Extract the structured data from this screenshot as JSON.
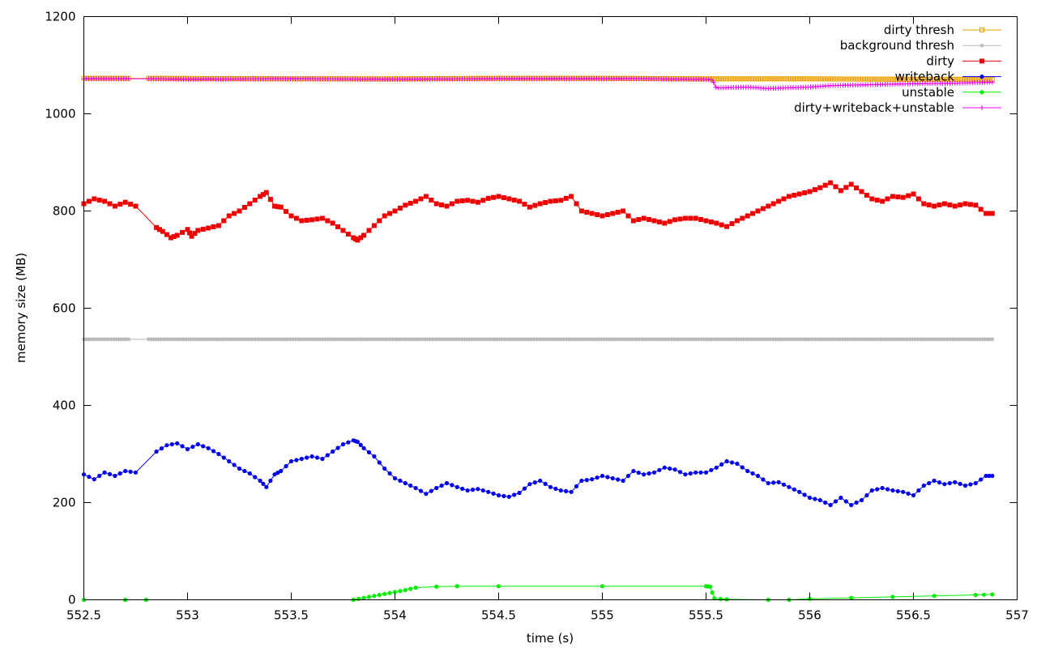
{
  "chart_data": {
    "type": "line",
    "title": "",
    "xlabel": "time (s)",
    "ylabel": "memory size (MB)",
    "xlim": [
      552.5,
      557
    ],
    "ylim": [
      0,
      1200
    ],
    "x_ticks": [
      "552.5",
      "553",
      "553.5",
      "554",
      "554.5",
      "555",
      "555.5",
      "556",
      "556.5",
      "557"
    ],
    "y_ticks": [
      "0",
      "200",
      "400",
      "600",
      "800",
      "1000",
      "1200"
    ],
    "x_tick_values": [
      552.5,
      553,
      553.5,
      554,
      554.5,
      555,
      555.5,
      556,
      556.5,
      557
    ],
    "y_tick_values": [
      0,
      200,
      400,
      600,
      800,
      1000,
      1200
    ],
    "grid": false,
    "legend_position": "top-right",
    "series": [
      {
        "name": "dirty thresh",
        "color": "#f0a000",
        "marker": "square-open",
        "points": [
          [
            552.5,
            1073
          ],
          [
            552.8,
            1073
          ],
          [
            553.5,
            1072
          ],
          [
            554.0,
            1072
          ],
          [
            554.5,
            1073
          ],
          [
            555.0,
            1073
          ],
          [
            555.5,
            1072
          ],
          [
            556.0,
            1072
          ],
          [
            556.5,
            1071
          ],
          [
            556.88,
            1071
          ]
        ]
      },
      {
        "name": "background thresh",
        "color": "#b8b8b8",
        "marker": "asterisk",
        "points": [
          [
            552.5,
            536
          ],
          [
            556.88,
            536
          ]
        ]
      },
      {
        "name": "dirty",
        "color": "#ee0000",
        "marker": "square-filled",
        "points": [
          [
            552.5,
            815
          ],
          [
            552.55,
            825
          ],
          [
            552.6,
            820
          ],
          [
            552.65,
            810
          ],
          [
            552.7,
            818
          ],
          [
            552.75,
            810
          ],
          [
            552.85,
            766
          ],
          [
            552.88,
            758
          ],
          [
            552.92,
            745
          ],
          [
            552.95,
            750
          ],
          [
            553.0,
            762
          ],
          [
            553.02,
            748
          ],
          [
            553.05,
            760
          ],
          [
            553.1,
            765
          ],
          [
            553.15,
            770
          ],
          [
            553.2,
            790
          ],
          [
            553.25,
            800
          ],
          [
            553.3,
            815
          ],
          [
            553.35,
            830
          ],
          [
            553.38,
            838
          ],
          [
            553.42,
            810
          ],
          [
            553.45,
            808
          ],
          [
            553.5,
            790
          ],
          [
            553.55,
            780
          ],
          [
            553.6,
            782
          ],
          [
            553.65,
            785
          ],
          [
            553.7,
            775
          ],
          [
            553.75,
            760
          ],
          [
            553.8,
            745
          ],
          [
            553.82,
            740
          ],
          [
            553.85,
            750
          ],
          [
            553.9,
            770
          ],
          [
            553.95,
            790
          ],
          [
            554.0,
            800
          ],
          [
            554.05,
            812
          ],
          [
            554.1,
            820
          ],
          [
            554.15,
            830
          ],
          [
            554.2,
            815
          ],
          [
            554.25,
            810
          ],
          [
            554.3,
            820
          ],
          [
            554.35,
            822
          ],
          [
            554.4,
            818
          ],
          [
            554.45,
            826
          ],
          [
            554.5,
            830
          ],
          [
            554.55,
            825
          ],
          [
            554.6,
            820
          ],
          [
            554.65,
            808
          ],
          [
            554.7,
            815
          ],
          [
            554.75,
            820
          ],
          [
            554.8,
            822
          ],
          [
            554.85,
            830
          ],
          [
            554.9,
            800
          ],
          [
            554.95,
            795
          ],
          [
            555.0,
            790
          ],
          [
            555.05,
            795
          ],
          [
            555.1,
            800
          ],
          [
            555.15,
            780
          ],
          [
            555.2,
            785
          ],
          [
            555.25,
            780
          ],
          [
            555.3,
            775
          ],
          [
            555.35,
            782
          ],
          [
            555.4,
            785
          ],
          [
            555.45,
            785
          ],
          [
            555.5,
            780
          ],
          [
            555.55,
            775
          ],
          [
            555.6,
            768
          ],
          [
            555.65,
            780
          ],
          [
            555.7,
            790
          ],
          [
            555.75,
            800
          ],
          [
            555.8,
            810
          ],
          [
            555.85,
            820
          ],
          [
            555.9,
            830
          ],
          [
            555.95,
            835
          ],
          [
            556.0,
            840
          ],
          [
            556.05,
            848
          ],
          [
            556.1,
            858
          ],
          [
            556.15,
            842
          ],
          [
            556.2,
            855
          ],
          [
            556.25,
            840
          ],
          [
            556.3,
            825
          ],
          [
            556.35,
            820
          ],
          [
            556.4,
            830
          ],
          [
            556.45,
            828
          ],
          [
            556.5,
            835
          ],
          [
            556.55,
            815
          ],
          [
            556.6,
            810
          ],
          [
            556.65,
            815
          ],
          [
            556.7,
            810
          ],
          [
            556.75,
            815
          ],
          [
            556.8,
            812
          ],
          [
            556.85,
            795
          ],
          [
            556.88,
            795
          ]
        ]
      },
      {
        "name": "writeback",
        "color": "#0000ee",
        "marker": "circle-filled",
        "points": [
          [
            552.5,
            258
          ],
          [
            552.55,
            248
          ],
          [
            552.6,
            262
          ],
          [
            552.65,
            255
          ],
          [
            552.7,
            265
          ],
          [
            552.75,
            262
          ],
          [
            552.85,
            305
          ],
          [
            552.9,
            318
          ],
          [
            552.95,
            322
          ],
          [
            553.0,
            310
          ],
          [
            553.05,
            320
          ],
          [
            553.1,
            312
          ],
          [
            553.15,
            300
          ],
          [
            553.2,
            285
          ],
          [
            553.25,
            270
          ],
          [
            553.3,
            260
          ],
          [
            553.35,
            245
          ],
          [
            553.38,
            232
          ],
          [
            553.42,
            258
          ],
          [
            553.45,
            265
          ],
          [
            553.5,
            285
          ],
          [
            553.55,
            290
          ],
          [
            553.6,
            295
          ],
          [
            553.65,
            290
          ],
          [
            553.7,
            305
          ],
          [
            553.75,
            320
          ],
          [
            553.8,
            328
          ],
          [
            553.82,
            325
          ],
          [
            553.85,
            312
          ],
          [
            553.9,
            295
          ],
          [
            553.95,
            270
          ],
          [
            554.0,
            250
          ],
          [
            554.05,
            240
          ],
          [
            554.1,
            230
          ],
          [
            554.15,
            218
          ],
          [
            554.2,
            230
          ],
          [
            554.25,
            240
          ],
          [
            554.3,
            232
          ],
          [
            554.35,
            225
          ],
          [
            554.4,
            228
          ],
          [
            554.45,
            222
          ],
          [
            554.5,
            215
          ],
          [
            554.55,
            212
          ],
          [
            554.6,
            220
          ],
          [
            554.65,
            238
          ],
          [
            554.7,
            245
          ],
          [
            554.75,
            232
          ],
          [
            554.8,
            225
          ],
          [
            554.85,
            222
          ],
          [
            554.9,
            245
          ],
          [
            554.95,
            248
          ],
          [
            555.0,
            255
          ],
          [
            555.05,
            250
          ],
          [
            555.1,
            245
          ],
          [
            555.15,
            265
          ],
          [
            555.2,
            258
          ],
          [
            555.25,
            262
          ],
          [
            555.3,
            272
          ],
          [
            555.35,
            268
          ],
          [
            555.4,
            258
          ],
          [
            555.45,
            262
          ],
          [
            555.5,
            262
          ],
          [
            555.55,
            272
          ],
          [
            555.6,
            285
          ],
          [
            555.65,
            280
          ],
          [
            555.7,
            265
          ],
          [
            555.75,
            255
          ],
          [
            555.8,
            240
          ],
          [
            555.85,
            242
          ],
          [
            555.9,
            232
          ],
          [
            555.95,
            222
          ],
          [
            556.0,
            210
          ],
          [
            556.05,
            205
          ],
          [
            556.1,
            195
          ],
          [
            556.15,
            210
          ],
          [
            556.2,
            195
          ],
          [
            556.25,
            205
          ],
          [
            556.3,
            225
          ],
          [
            556.35,
            230
          ],
          [
            556.4,
            225
          ],
          [
            556.45,
            222
          ],
          [
            556.5,
            215
          ],
          [
            556.55,
            235
          ],
          [
            556.6,
            245
          ],
          [
            556.65,
            238
          ],
          [
            556.7,
            242
          ],
          [
            556.75,
            235
          ],
          [
            556.8,
            240
          ],
          [
            556.85,
            255
          ],
          [
            556.88,
            255
          ]
        ]
      },
      {
        "name": "unstable",
        "color": "#00ee00",
        "marker": "circle-filled",
        "points": [
          [
            552.5,
            0
          ],
          [
            552.7,
            0
          ],
          [
            552.8,
            0
          ],
          [
            553.8,
            0
          ],
          [
            553.85,
            4
          ],
          [
            553.9,
            8
          ],
          [
            553.95,
            12
          ],
          [
            554.0,
            16
          ],
          [
            554.05,
            20
          ],
          [
            554.1,
            25
          ],
          [
            554.2,
            27
          ],
          [
            554.3,
            28
          ],
          [
            554.5,
            28
          ],
          [
            555.0,
            28
          ],
          [
            555.5,
            28
          ],
          [
            555.52,
            27
          ],
          [
            555.54,
            3
          ],
          [
            555.6,
            1
          ],
          [
            555.8,
            0
          ],
          [
            555.9,
            0
          ],
          [
            556.0,
            2
          ],
          [
            556.2,
            4
          ],
          [
            556.4,
            6
          ],
          [
            556.6,
            8
          ],
          [
            556.8,
            10
          ],
          [
            556.88,
            11
          ]
        ]
      },
      {
        "name": "dirty+writeback+unstable",
        "color": "#ee00ee",
        "marker": "plus",
        "points": [
          [
            552.5,
            1072
          ],
          [
            552.7,
            1072
          ],
          [
            552.8,
            1072
          ],
          [
            553.0,
            1071
          ],
          [
            553.5,
            1072
          ],
          [
            554.0,
            1071
          ],
          [
            554.5,
            1072
          ],
          [
            555.0,
            1072
          ],
          [
            555.2,
            1072
          ],
          [
            555.4,
            1071
          ],
          [
            555.5,
            1071
          ],
          [
            555.53,
            1070
          ],
          [
            555.55,
            1053
          ],
          [
            555.7,
            1055
          ],
          [
            555.8,
            1052
          ],
          [
            556.0,
            1055
          ],
          [
            556.1,
            1058
          ],
          [
            556.3,
            1060
          ],
          [
            556.5,
            1062
          ],
          [
            556.7,
            1063
          ],
          [
            556.88,
            1065
          ]
        ]
      }
    ]
  }
}
